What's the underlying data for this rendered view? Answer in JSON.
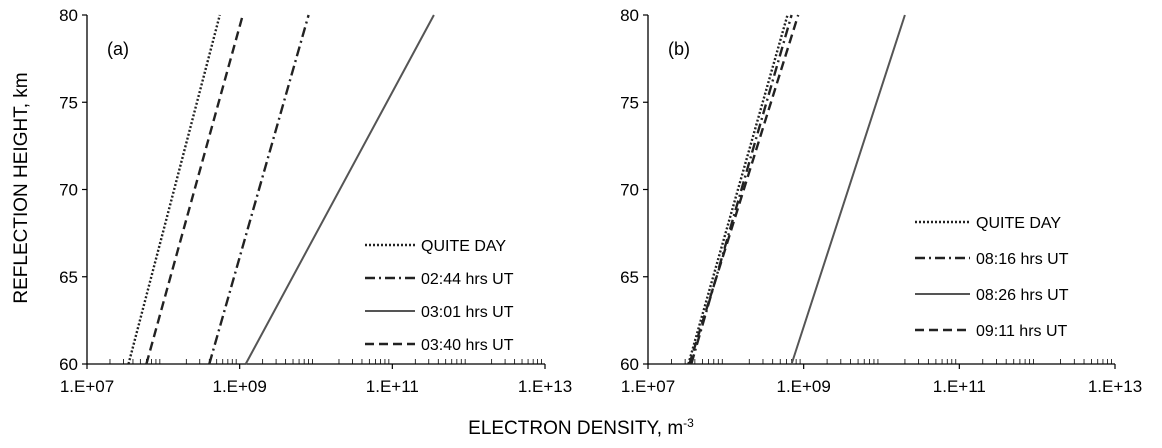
{
  "figure": {
    "ylabel": "REFLECTION HEIGHT, km",
    "xlabel_main": "ELECTRON DENSITY, m",
    "xlabel_sup": "-3"
  },
  "chart_data": [
    {
      "type": "line",
      "panel_label": "(a)",
      "x_scale": "log",
      "xlim": [
        10000000,
        10000000000000
      ],
      "ylim": [
        60,
        80
      ],
      "x_ticks": [
        "1.E+07",
        "1.E+09",
        "1.E+11",
        "1.E+13"
      ],
      "y_ticks": [
        "60",
        "65",
        "70",
        "75",
        "80"
      ],
      "xlabel": "ELECTRON DENSITY, m-3",
      "ylabel": "REFLECTION HEIGHT, km",
      "legend_position": "bottom-right",
      "series": [
        {
          "name": "QUITE DAY",
          "style": "dotted",
          "color": "#222222",
          "x": [
            35000000,
            550000000
          ],
          "y": [
            60,
            80
          ]
        },
        {
          "name": "02:44 hrs UT",
          "style": "dashdot",
          "color": "#222222",
          "x": [
            400000000,
            8000000000
          ],
          "y": [
            60,
            80
          ]
        },
        {
          "name": "03:01 hrs UT",
          "style": "solid",
          "color": "#555555",
          "x": [
            1200000000,
            350000000000
          ],
          "y": [
            60,
            80
          ]
        },
        {
          "name": "03:40 hrs UT",
          "style": "dashed",
          "color": "#222222",
          "x": [
            60000000,
            1100000000
          ],
          "y": [
            60,
            80
          ]
        }
      ]
    },
    {
      "type": "line",
      "panel_label": "(b)",
      "x_scale": "log",
      "xlim": [
        10000000,
        10000000000000
      ],
      "ylim": [
        60,
        80
      ],
      "x_ticks": [
        "1.E+07",
        "1.E+09",
        "1.E+11",
        "1.E+13"
      ],
      "y_ticks": [
        "60",
        "65",
        "70",
        "75",
        "80"
      ],
      "xlabel": "ELECTRON DENSITY, m-3",
      "ylabel": "REFLECTION HEIGHT, km",
      "legend_position": "right",
      "series": [
        {
          "name": "QUITE DAY",
          "style": "dotted",
          "color": "#222222",
          "x": [
            33000000,
            620000000
          ],
          "y": [
            60,
            80
          ]
        },
        {
          "name": "08:16 hrs UT",
          "style": "dashdot",
          "color": "#222222",
          "x": [
            36000000,
            700000000
          ],
          "y": [
            60,
            80
          ]
        },
        {
          "name": "08:26 hrs UT",
          "style": "solid",
          "color": "#555555",
          "x": [
            700000000,
            20000000000
          ],
          "y": [
            60,
            80
          ]
        },
        {
          "name": "09:11 hrs UT",
          "style": "dashed",
          "color": "#222222",
          "x": [
            34000000,
            850000000
          ],
          "y": [
            60,
            80
          ]
        }
      ]
    }
  ]
}
